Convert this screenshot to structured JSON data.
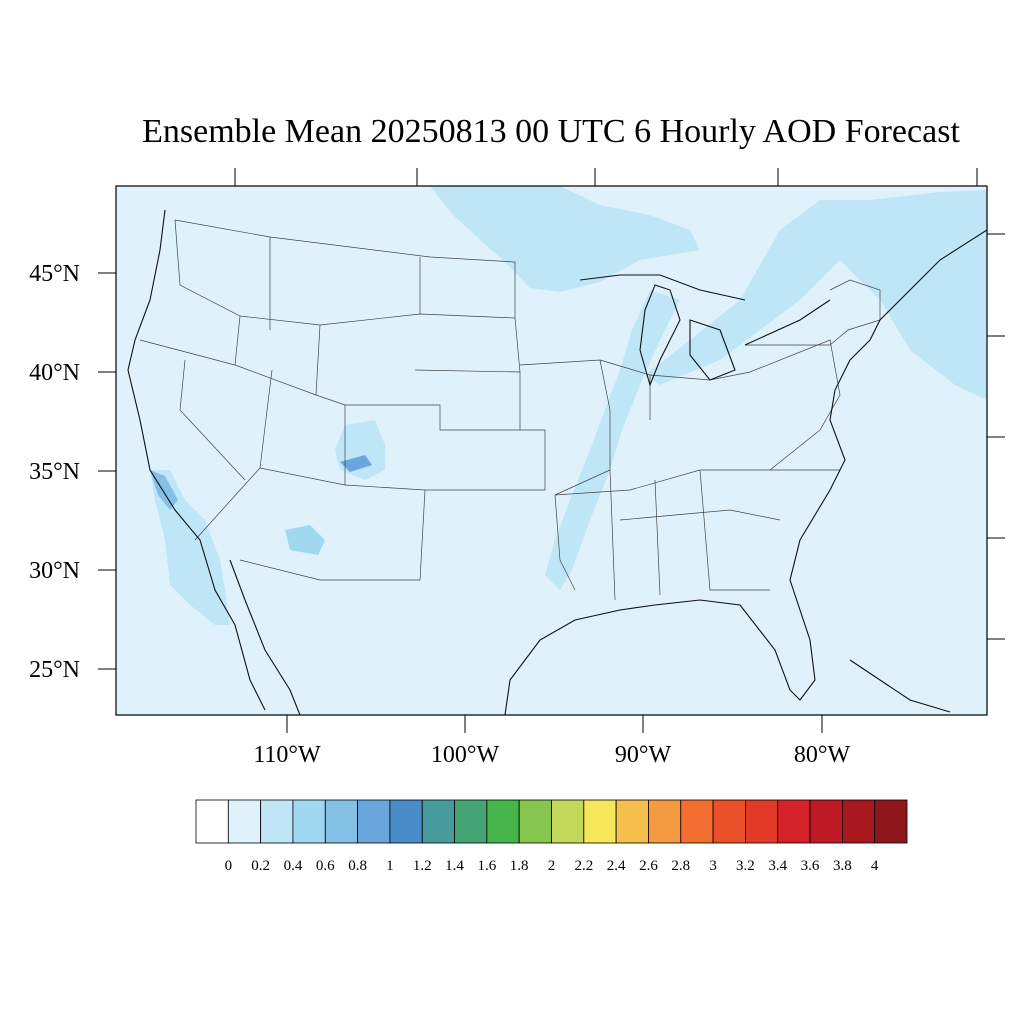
{
  "title": "Ensemble Mean 20250813 00 UTC 6 Hourly AOD Forecast",
  "map": {
    "lon_labels": [
      "110°W",
      "100°W",
      "90°W",
      "80°W"
    ],
    "lat_labels": [
      "45°N",
      "40°N",
      "35°N",
      "30°N",
      "25°N"
    ],
    "background_color": "#dff2fb"
  },
  "colorbar": {
    "labels": [
      "0",
      "0.2",
      "0.4",
      "0.6",
      "0.8",
      "1",
      "1.2",
      "1.4",
      "1.6",
      "1.8",
      "2",
      "2.2",
      "2.4",
      "2.6",
      "2.8",
      "3",
      "3.2",
      "3.4",
      "3.6",
      "3.8",
      "4"
    ],
    "colors": [
      "#ffffff",
      "#dff2fb",
      "#bfe6f7",
      "#a0d8f2",
      "#84bfe6",
      "#68a6dc",
      "#4a8cc8",
      "#479b9c",
      "#44a474",
      "#46b54a",
      "#86c64f",
      "#c3d759",
      "#f6e75b",
      "#f6be4d",
      "#f59a40",
      "#f26f31",
      "#ea5029",
      "#e13a27",
      "#d42228",
      "#be1a25",
      "#a8181f",
      "#8f161a"
    ]
  }
}
